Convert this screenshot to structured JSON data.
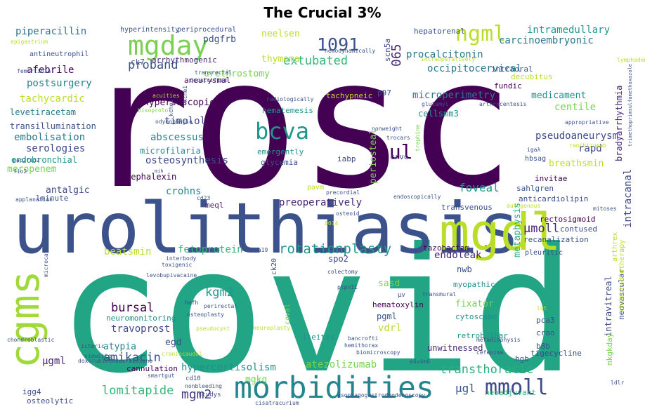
{
  "chart_data": {
    "type": "wordcloud",
    "title": "The Crucial 3%",
    "words": [
      {
        "text": "rosc",
        "weight": 100,
        "color": "#440154"
      },
      {
        "text": "covid",
        "weight": 95,
        "color": "#21a585"
      },
      {
        "text": "urolithiasis",
        "weight": 60,
        "color": "#3b528b"
      },
      {
        "text": "mgdl",
        "weight": 40,
        "color": "#bade28"
      },
      {
        "text": "cgms",
        "weight": 30,
        "color": "#a0da39"
      },
      {
        "text": "morbidities",
        "weight": 24,
        "color": "#25858e"
      },
      {
        "text": "mgday",
        "weight": 22,
        "color": "#7ad151"
      },
      {
        "text": "ngml",
        "weight": 18,
        "color": "#bade28"
      },
      {
        "text": "bcva",
        "weight": 16,
        "color": "#1f968b"
      },
      {
        "text": "mmoll",
        "weight": 16,
        "color": "#3e4a89"
      },
      {
        "text": "1091",
        "weight": 15,
        "color": "#3b528b"
      },
      {
        "text": "iul",
        "weight": 15,
        "color": "#440154"
      },
      {
        "text": "rotationplasty",
        "weight": 11,
        "color": "#1f968b"
      },
      {
        "text": "lomitapide",
        "weight": 10,
        "color": "#35b779"
      },
      {
        "text": "transthoracic",
        "weight": 10,
        "color": "#29af7f"
      },
      {
        "text": "amikacin",
        "weight": 10,
        "color": "#3b528b"
      },
      {
        "text": "extubated",
        "weight": 10,
        "color": "#35b779"
      },
      {
        "text": "proband",
        "weight": 10,
        "color": "#3b528b"
      },
      {
        "text": "mgm2",
        "weight": 10,
        "color": "#443983"
      },
      {
        "text": "kgm2",
        "weight": 9,
        "color": "#1f968b"
      },
      {
        "text": "bursal",
        "weight": 9,
        "color": "#440154"
      },
      {
        "text": "µmoll",
        "weight": 9,
        "color": "#482677"
      },
      {
        "text": "foveal",
        "weight": 9,
        "color": "#1f968b"
      },
      {
        "text": "µgl",
        "weight": 9,
        "color": "#3b528b"
      },
      {
        "text": "hypercortisolism",
        "weight": 8,
        "color": "#21908d"
      },
      {
        "text": "occipitocervical",
        "weight": 8,
        "color": "#2a788e"
      },
      {
        "text": "procalcitonin",
        "weight": 8,
        "color": "#2a788e"
      },
      {
        "text": "intramedullary",
        "weight": 8,
        "color": "#1f968b"
      },
      {
        "text": "piperacillin",
        "weight": 8,
        "color": "#2a788e"
      },
      {
        "text": "065",
        "weight": 9,
        "color": "#482677"
      },
      {
        "text": "beatsmin",
        "weight": 8,
        "color": "#bade28"
      },
      {
        "text": "fetoprotein",
        "weight": 8,
        "color": "#35b779"
      },
      {
        "text": "atezolizumab",
        "weight": 8,
        "color": "#7ad151"
      },
      {
        "text": "preoperatively",
        "weight": 7,
        "color": "#482677"
      },
      {
        "text": "microperimetry",
        "weight": 7,
        "color": "#2a788e"
      },
      {
        "text": "afebrile",
        "weight": 7,
        "color": "#440154"
      },
      {
        "text": "postsurgery",
        "weight": 7,
        "color": "#25858e"
      },
      {
        "text": "tachycardic",
        "weight": 7,
        "color": "#bade28"
      },
      {
        "text": "timolol",
        "weight": 7,
        "color": "#3e4a89"
      },
      {
        "text": "abscessus",
        "weight": 7,
        "color": "#25858e"
      },
      {
        "text": "embolisation",
        "weight": 7,
        "color": "#2a788e"
      },
      {
        "text": "osteosynthesis",
        "weight": 7,
        "color": "#3e4a89"
      },
      {
        "text": "serologies",
        "weight": 7,
        "color": "#3e4a89"
      },
      {
        "text": "travoprost",
        "weight": 7,
        "color": "#3e4a89"
      },
      {
        "text": "carcinoembryonic",
        "weight": 7,
        "color": "#2a788e"
      },
      {
        "text": "medicament",
        "weight": 6,
        "color": "#21908d"
      },
      {
        "text": "centile",
        "weight": 7,
        "color": "#7ad151"
      },
      {
        "text": "pseudoaneurysm",
        "weight": 7,
        "color": "#3e4a89"
      },
      {
        "text": "intracanal",
        "weight": 7,
        "color": "#3e4a89"
      },
      {
        "text": "rapd",
        "weight": 7,
        "color": "#3e4a89"
      },
      {
        "text": "vdrl",
        "weight": 7,
        "color": "#bade28"
      },
      {
        "text": "endoleak",
        "weight": 6,
        "color": "#482677"
      },
      {
        "text": "fixator",
        "weight": 6,
        "color": "#7ad151"
      },
      {
        "text": "sasd",
        "weight": 6,
        "color": "#7ad151"
      },
      {
        "text": "µgml",
        "weight": 7,
        "color": "#482677"
      },
      {
        "text": "atypia",
        "weight": 6,
        "color": "#25858e"
      },
      {
        "text": "egd",
        "weight": 6,
        "color": "#3b528b"
      },
      {
        "text": "mgkg",
        "weight": 6,
        "color": "#7ad151"
      },
      {
        "text": "crohns",
        "weight": 7,
        "color": "#25858e"
      },
      {
        "text": "thymoma",
        "weight": 6,
        "color": "#bade28"
      },
      {
        "text": "neelsen",
        "weight": 6,
        "color": "#bade28"
      },
      {
        "text": "pdgfrb",
        "weight": 6,
        "color": "#3b528b"
      },
      {
        "text": "urethrostomy",
        "weight": 6,
        "color": "#7ad151"
      },
      {
        "text": "periosteal",
        "weight": 6,
        "color": "#7ad151"
      },
      {
        "text": "metaphysis",
        "weight": 6,
        "color": "#29af7f"
      },
      {
        "text": "meropenem",
        "weight": 6,
        "color": "#7ad151"
      },
      {
        "text": "antalgic",
        "weight": 6,
        "color": "#3e4a89"
      },
      {
        "text": "breathsmin",
        "weight": 6,
        "color": "#bade28"
      },
      {
        "text": "bradyarrhythmia",
        "weight": 6,
        "color": "#482677"
      },
      {
        "text": "intravitreal",
        "weight": 6,
        "color": "#3e4a89"
      },
      {
        "text": "cytoscope",
        "weight": 5,
        "color": "#21908d"
      },
      {
        "text": "nwb",
        "weight": 6,
        "color": "#3b528b"
      },
      {
        "text": "myopathic",
        "weight": 5,
        "color": "#21908d"
      },
      {
        "text": "pgml",
        "weight": 6,
        "color": "#3b528b"
      },
      {
        "text": "hypersoscopic",
        "weight": 6,
        "color": "#440154"
      },
      {
        "text": "cellsmm3",
        "weight": 6,
        "color": "#21908d"
      },
      {
        "text": "microfilaria",
        "weight": 6,
        "color": "#21908d"
      },
      {
        "text": "cephalexin",
        "weight": 6,
        "color": "#440154"
      },
      {
        "text": "endobronchial",
        "weight": 5,
        "color": "#1f968b"
      },
      {
        "text": "levetiracetam",
        "weight": 5,
        "color": "#2a788e"
      },
      {
        "text": "transillumination",
        "weight": 5,
        "color": "#3b528b"
      },
      {
        "text": "neuromonitoring",
        "weight": 5,
        "color": "#21908d"
      },
      {
        "text": "cannulation",
        "weight": 5,
        "color": "#440154"
      },
      {
        "text": "unwitnessed",
        "weight": 5,
        "color": "#482677"
      },
      {
        "text": "tigecycline",
        "weight": 5,
        "color": "#3e4a89"
      },
      {
        "text": "neoadjuvant",
        "weight": 5,
        "color": "#35b779"
      },
      {
        "text": "neovascular",
        "weight": 5,
        "color": "#3e4a89"
      },
      {
        "text": "retrobulbar",
        "weight": 5,
        "color": "#21908d"
      },
      {
        "text": "recanalization",
        "weight": 5,
        "color": "#3b528b"
      },
      {
        "text": "rectosigmoid",
        "weight": 5,
        "color": "#440154"
      },
      {
        "text": "tazobactam",
        "weight": 5,
        "color": "#440154"
      },
      {
        "text": "hematoxylin",
        "weight": 5,
        "color": "#440154"
      },
      {
        "text": "ileitis",
        "weight": 5,
        "color": "#21908d"
      },
      {
        "text": "igg4",
        "weight": 5,
        "color": "#3e4a89"
      },
      {
        "text": "osteolytic",
        "weight": 5,
        "color": "#3b528b"
      },
      {
        "text": "hgb",
        "weight": 5,
        "color": "#3b528b"
      },
      {
        "text": "crvo",
        "weight": 5,
        "color": "#3e4a89"
      },
      {
        "text": "iabp",
        "weight": 5,
        "color": "#3e4a89"
      },
      {
        "text": "meql",
        "weight": 5,
        "color": "#482677"
      },
      {
        "text": "spo2",
        "weight": 5,
        "color": "#3e4a89"
      },
      {
        "text": "arrhythmogenic",
        "weight": 5,
        "color": "#482677"
      },
      {
        "text": "decubitus",
        "weight": 5,
        "color": "#bade28"
      },
      {
        "text": "invitae",
        "weight": 5,
        "color": "#440154"
      },
      {
        "text": "contused",
        "weight": 4,
        "color": "#3e4a89"
      },
      {
        "text": "transvenous",
        "weight": 4,
        "color": "#3b528b"
      },
      {
        "text": "anticardiolipin",
        "weight": 4,
        "color": "#3b528b"
      },
      {
        "text": "hepatorenal",
        "weight": 4,
        "color": "#3b528b"
      },
      {
        "text": "intraoral",
        "weight": 4,
        "color": "#3b528b"
      },
      {
        "text": "tachypneic",
        "weight": 4,
        "color": "#bade28"
      },
      {
        "text": "fundic",
        "weight": 4,
        "color": "#440154"
      },
      {
        "text": "aneurysmal",
        "weight": 4,
        "color": "#440154"
      },
      {
        "text": "glycemia",
        "weight": 4,
        "color": "#3b528b"
      },
      {
        "text": "emergently",
        "weight": 4,
        "color": "#21908d"
      },
      {
        "text": "hematemesis",
        "weight": 4,
        "color": "#21908d"
      },
      {
        "text": "lminute",
        "weight": 4,
        "color": "#3b528b"
      },
      {
        "text": "scn5a",
        "weight": 4,
        "color": "#3e4a89"
      },
      {
        "text": "ck7",
        "weight": 4,
        "color": "#3b528b"
      },
      {
        "text": "p97",
        "weight": 4,
        "color": "#3b528b"
      },
      {
        "text": "sahlgren",
        "weight": 4,
        "color": "#3b528b"
      },
      {
        "text": "hbsag",
        "weight": 4,
        "color": "#3b528b"
      },
      {
        "text": "mkgkday",
        "weight": 4,
        "color": "#7ad151"
      },
      {
        "text": "pca3",
        "weight": 4,
        "color": "#3b528b"
      },
      {
        "text": "crao",
        "weight": 4,
        "color": "#3b528b"
      },
      {
        "text": "b8b",
        "weight": 4,
        "color": "#3b528b"
      },
      {
        "text": "pleuritic",
        "weight": 3,
        "color": "#3b528b"
      },
      {
        "text": "arthrex",
        "weight": 4,
        "color": "#bade28"
      },
      {
        "text": "chemoradiotherapy",
        "weight": 4,
        "color": "#bade28"
      },
      {
        "text": "ck20",
        "weight": 4,
        "color": "#3b528b"
      },
      {
        "text": "caval",
        "weight": 4,
        "color": "#7ad151"
      },
      {
        "text": "pavm",
        "weight": 4,
        "color": "#bade28"
      },
      {
        "text": "antineutrophil",
        "weight": 3,
        "color": "#3b528b"
      },
      {
        "text": "hyperintensity",
        "weight": 3,
        "color": "#3b528b"
      },
      {
        "text": "periprocedural",
        "weight": 3,
        "color": "#3b528b"
      },
      {
        "text": "epigastrium",
        "weight": 2,
        "color": "#bade28"
      },
      {
        "text": "femurtibia",
        "weight": 2,
        "color": "#3b528b"
      },
      {
        "text": "transrectal",
        "weight": 2,
        "color": "#3b528b"
      },
      {
        "text": "decalcified",
        "weight": 2,
        "color": "#3b528b"
      },
      {
        "text": "acuities",
        "weight": 2,
        "color": "#bade28"
      },
      {
        "text": "bisoprolol",
        "weight": 2,
        "color": "#7ad151"
      },
      {
        "text": "odynophagia",
        "weight": 2,
        "color": "#3b528b"
      },
      {
        "text": "pao2fio2",
        "weight": 3,
        "color": "#3b528b"
      },
      {
        "text": "fio2",
        "weight": 3,
        "color": "#3b528b"
      },
      {
        "text": "applanation",
        "weight": 2,
        "color": "#3b528b"
      },
      {
        "text": "cd23",
        "weight": 2,
        "color": "#3b528b"
      },
      {
        "text": "precordial",
        "weight": 3,
        "color": "#3b528b"
      },
      {
        "text": "endoscopically",
        "weight": 2,
        "color": "#3b528b"
      },
      {
        "text": "autogenous",
        "weight": 2,
        "color": "#bade28"
      },
      {
        "text": "mitoses",
        "weight": 2,
        "color": "#3b528b"
      },
      {
        "text": "osteoid",
        "weight": 2,
        "color": "#3b528b"
      },
      {
        "text": "nonweight",
        "weight": 2,
        "color": "#3b528b"
      },
      {
        "text": "trocars",
        "weight": 2,
        "color": "#3b528b"
      },
      {
        "text": "trephine",
        "weight": 2,
        "color": "#7ad151"
      },
      {
        "text": "igaλ",
        "weight": 2,
        "color": "#3b528b"
      },
      {
        "text": "hemodynamically",
        "weight": 2,
        "color": "#3b528b"
      },
      {
        "text": "radiologically",
        "weight": 2,
        "color": "#3b528b"
      },
      {
        "text": "glutamyl",
        "weight": 2,
        "color": "#3b528b"
      },
      {
        "text": "arthrocentesis",
        "weight": 2,
        "color": "#3b528b"
      },
      {
        "text": "intraoperatively",
        "weight": 2,
        "color": "#bade28"
      },
      {
        "text": "lymphadenectomy",
        "weight": 2,
        "color": "#bade28"
      },
      {
        "text": "appropriative",
        "weight": 2,
        "color": "#3b528b"
      },
      {
        "text": "ranibizumab",
        "weight": 2,
        "color": "#bade28"
      },
      {
        "text": "kcnq1",
        "weight": 2,
        "color": "#3b528b"
      },
      {
        "text": "kcne1",
        "weight": 2,
        "color": "#3b528b"
      },
      {
        "text": "trimethoprimsulfamethoxazole",
        "weight": 2,
        "color": "#3b528b"
      },
      {
        "text": "0014",
        "weight": 3,
        "color": "#bade28"
      },
      {
        "text": "ca19",
        "weight": 2,
        "color": "#3b528b"
      },
      {
        "text": "colectomy",
        "weight": 2,
        "color": "#3b528b"
      },
      {
        "text": "interbody",
        "weight": 2,
        "color": "#3b528b"
      },
      {
        "text": "toxigenic",
        "weight": 2,
        "color": "#3b528b"
      },
      {
        "text": "microcatheter",
        "weight": 2,
        "color": "#3b528b"
      },
      {
        "text": "levobupivacaine",
        "weight": 2,
        "color": "#3b528b"
      },
      {
        "text": "ptpn11",
        "weight": 2,
        "color": "#3b528b"
      },
      {
        "text": "µv",
        "weight": 3,
        "color": "#3b528b"
      },
      {
        "text": "transmural",
        "weight": 2,
        "color": "#3b528b"
      },
      {
        "text": "hefh",
        "weight": 2,
        "color": "#3b528b"
      },
      {
        "text": "perirectal",
        "weight": 2,
        "color": "#3b528b"
      },
      {
        "text": "osteoplasty",
        "weight": 2,
        "color": "#3b528b"
      },
      {
        "text": "pseudocyst",
        "weight": 2,
        "color": "#bade28"
      },
      {
        "text": "neuroplasty",
        "weight": 2,
        "color": "#bade28"
      },
      {
        "text": "bancrofti",
        "weight": 2,
        "color": "#3b528b"
      },
      {
        "text": "metadiaphysis",
        "weight": 2,
        "color": "#3b528b"
      },
      {
        "text": "lqt",
        "weight": 2,
        "color": "#bade28"
      },
      {
        "text": "chondroblastic",
        "weight": 2,
        "color": "#3b528b"
      },
      {
        "text": "viewsite",
        "weight": 2,
        "color": "#3b528b"
      },
      {
        "text": "icteric",
        "weight": 2,
        "color": "#3b528b"
      },
      {
        "text": "hemithorax",
        "weight": 2,
        "color": "#3b528b"
      },
      {
        "text": "biomicroscopy",
        "weight": 2,
        "color": "#3b528b"
      },
      {
        "text": "e4v4m6",
        "weight": 2,
        "color": "#3b528b"
      },
      {
        "text": "cefepime",
        "weight": 2,
        "color": "#3b528b"
      },
      {
        "text": "craniocaudal",
        "weight": 2,
        "color": "#bade28"
      },
      {
        "text": "doxorubicindexrazoxane",
        "weight": 2,
        "color": "#3b528b"
      },
      {
        "text": "smartgut",
        "weight": 2,
        "color": "#3b528b"
      },
      {
        "text": "cd10",
        "weight": 3,
        "color": "#3b528b"
      },
      {
        "text": "nonbleeding",
        "weight": 2,
        "color": "#3b528b"
      },
      {
        "text": "studys",
        "weight": 3,
        "color": "#3b528b"
      },
      {
        "text": "cisatracurium",
        "weight": 2,
        "color": "#3b528b"
      },
      {
        "text": "esophagogastroduodenoscopy",
        "weight": 2,
        "color": "#3b528b"
      },
      {
        "text": "ldlr",
        "weight": 2,
        "color": "#3b528b"
      },
      {
        "text": "mih",
        "weight": 2,
        "color": "#3b528b"
      }
    ]
  }
}
